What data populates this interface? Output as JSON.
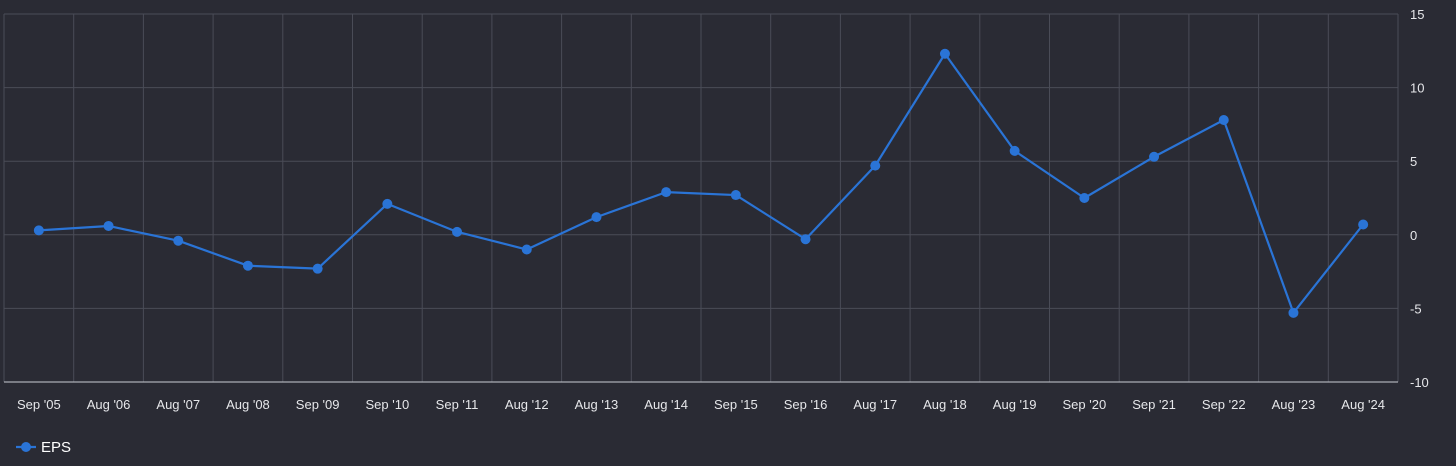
{
  "chart_data": {
    "type": "line",
    "title": "",
    "xlabel": "",
    "ylabel": "",
    "categories": [
      "Sep '05",
      "Aug '06",
      "Aug '07",
      "Aug '08",
      "Sep '09",
      "Sep '10",
      "Sep '11",
      "Aug '12",
      "Aug '13",
      "Aug '14",
      "Sep '15",
      "Sep '16",
      "Aug '17",
      "Aug '18",
      "Aug '19",
      "Sep '20",
      "Sep '21",
      "Sep '22",
      "Aug '23",
      "Aug '24"
    ],
    "series": [
      {
        "name": "EPS",
        "color": "#2a74d6",
        "values": [
          0.3,
          0.6,
          -0.4,
          -2.1,
          -2.3,
          2.1,
          0.2,
          -1.0,
          1.2,
          2.9,
          2.7,
          -0.3,
          4.7,
          12.3,
          5.7,
          2.5,
          5.3,
          7.8,
          -5.3,
          0.7
        ]
      }
    ],
    "ylim": [
      -10,
      15
    ],
    "yticks": [
      15,
      10,
      5,
      0,
      -5,
      -10
    ],
    "y_axis_side": "right",
    "grid": true,
    "legend": "bottom-left",
    "background": "#2a2b34"
  }
}
